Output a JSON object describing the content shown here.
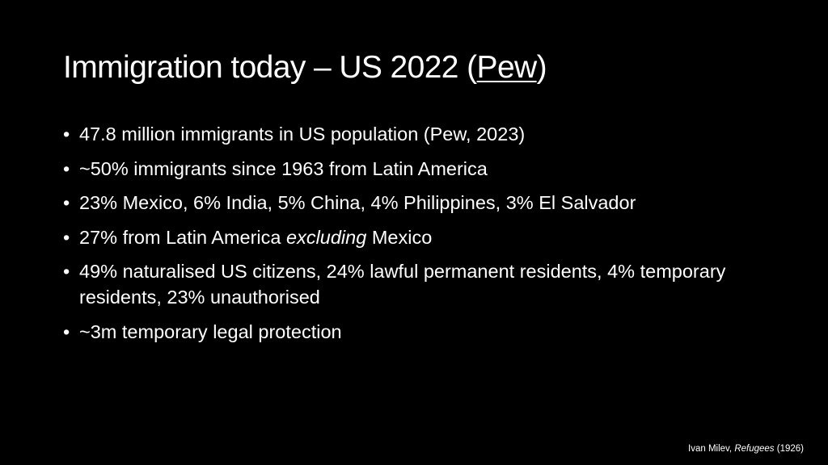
{
  "slide": {
    "title": {
      "before": "Immigration today – US 2022 (",
      "link": "Pew",
      "after": ")"
    },
    "bullet_marker": "•",
    "bullets": [
      {
        "text": "47.8 million immigrants in US population (Pew, 2023)"
      },
      {
        "text": "~50% immigrants since 1963 from Latin America"
      },
      {
        "text": "23% Mexico, 6% India, 5% China, 4% Philippines, 3% El Salvador"
      },
      {
        "before": "27% from Latin America ",
        "emphasis": "excluding",
        "after": " Mexico"
      },
      {
        "text": "49% naturalised US citizens, 24% lawful permanent residents, 4% temporary residents, 23% unauthorised"
      },
      {
        "text": "~3m temporary legal protection"
      }
    ],
    "caption": {
      "author": "Ivan Milev, ",
      "work": "Refugees",
      "year": " (1926)"
    }
  },
  "colors": {
    "background": "#000000",
    "text": "#ffffff"
  }
}
